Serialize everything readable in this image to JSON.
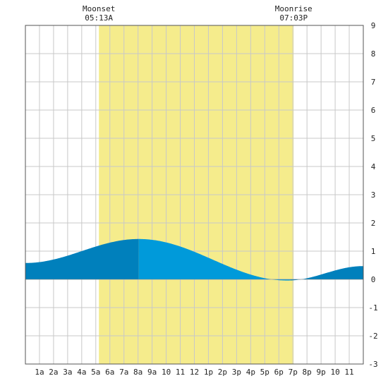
{
  "chart_data": {
    "type": "area",
    "title": "",
    "xlabel": "",
    "ylabel": "",
    "x_tick_labels": [
      "1a",
      "2a",
      "3a",
      "4a",
      "5a",
      "6a",
      "7a",
      "8a",
      "9a",
      "10",
      "11",
      "12",
      "1p",
      "2p",
      "3p",
      "4p",
      "5p",
      "6p",
      "7p",
      "8p",
      "9p",
      "10",
      "11"
    ],
    "x_ticks_hours": [
      1,
      2,
      3,
      4,
      5,
      6,
      7,
      8,
      9,
      10,
      11,
      12,
      13,
      14,
      15,
      16,
      17,
      18,
      19,
      20,
      21,
      22,
      23
    ],
    "xlim_hours": [
      0,
      24
    ],
    "ylim": [
      -3,
      9
    ],
    "y_ticks": [
      -3,
      -2,
      -1,
      0,
      1,
      2,
      3,
      4,
      5,
      6,
      7,
      8,
      9
    ],
    "grid": true,
    "moon_visible_window": {
      "start_hour": 5.22,
      "end_hour": 19.05,
      "color": "#f5ec8c"
    },
    "moon_events": [
      {
        "label": "Moonset",
        "time": "05:13A",
        "hour": 5.22
      },
      {
        "label": "Moonrise",
        "time": "07:03P",
        "hour": 19.05
      }
    ],
    "tide_series": {
      "name": "",
      "x_hours": [
        0,
        8.05,
        18.6,
        24
      ],
      "y_values": [
        0.58,
        1.43,
        -0.04,
        0.47
      ],
      "interpolation": "cosine"
    },
    "daylight_band": {
      "start_hour": 8.05,
      "end_hour": 18.8
    },
    "colors": {
      "tide_dark": "#0080bc",
      "tide_light": "#009ada",
      "grid": "#c8c8c8",
      "frame": "#555555",
      "background": "#ffffff"
    }
  }
}
